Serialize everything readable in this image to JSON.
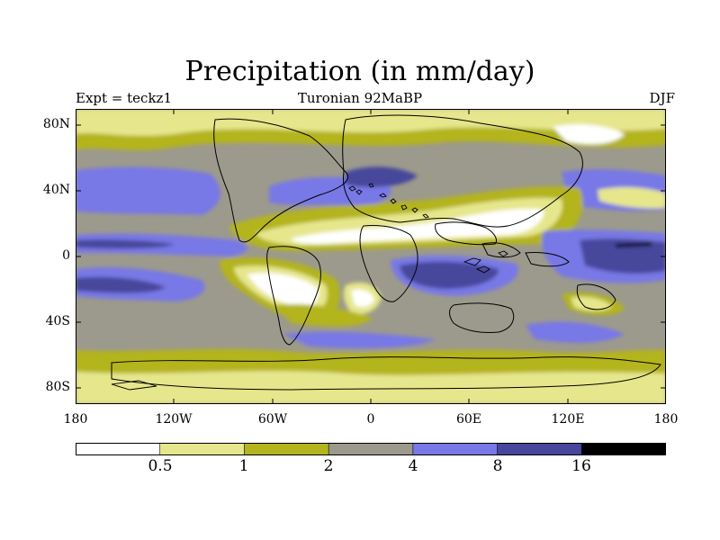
{
  "title": "Precipitation (in mm/day)",
  "subtitle_left": "Expt = teckz1",
  "subtitle_center": "Turonian  92MaBP",
  "subtitle_right": "DJF",
  "lat_ticks": [
    "80N",
    "40N",
    "0",
    "40S",
    "80S"
  ],
  "lon_ticks": [
    "180",
    "120W",
    "60W",
    "0",
    "60E",
    "120E",
    "180"
  ],
  "colorbar": {
    "colors": [
      "#ffffff",
      "#e6e68c",
      "#b4b41e",
      "#9c9a8c",
      "#7878e6",
      "#46469c",
      "#000000"
    ],
    "labels": [
      "0.5",
      "1",
      "2",
      "4",
      "8",
      "16"
    ]
  }
}
